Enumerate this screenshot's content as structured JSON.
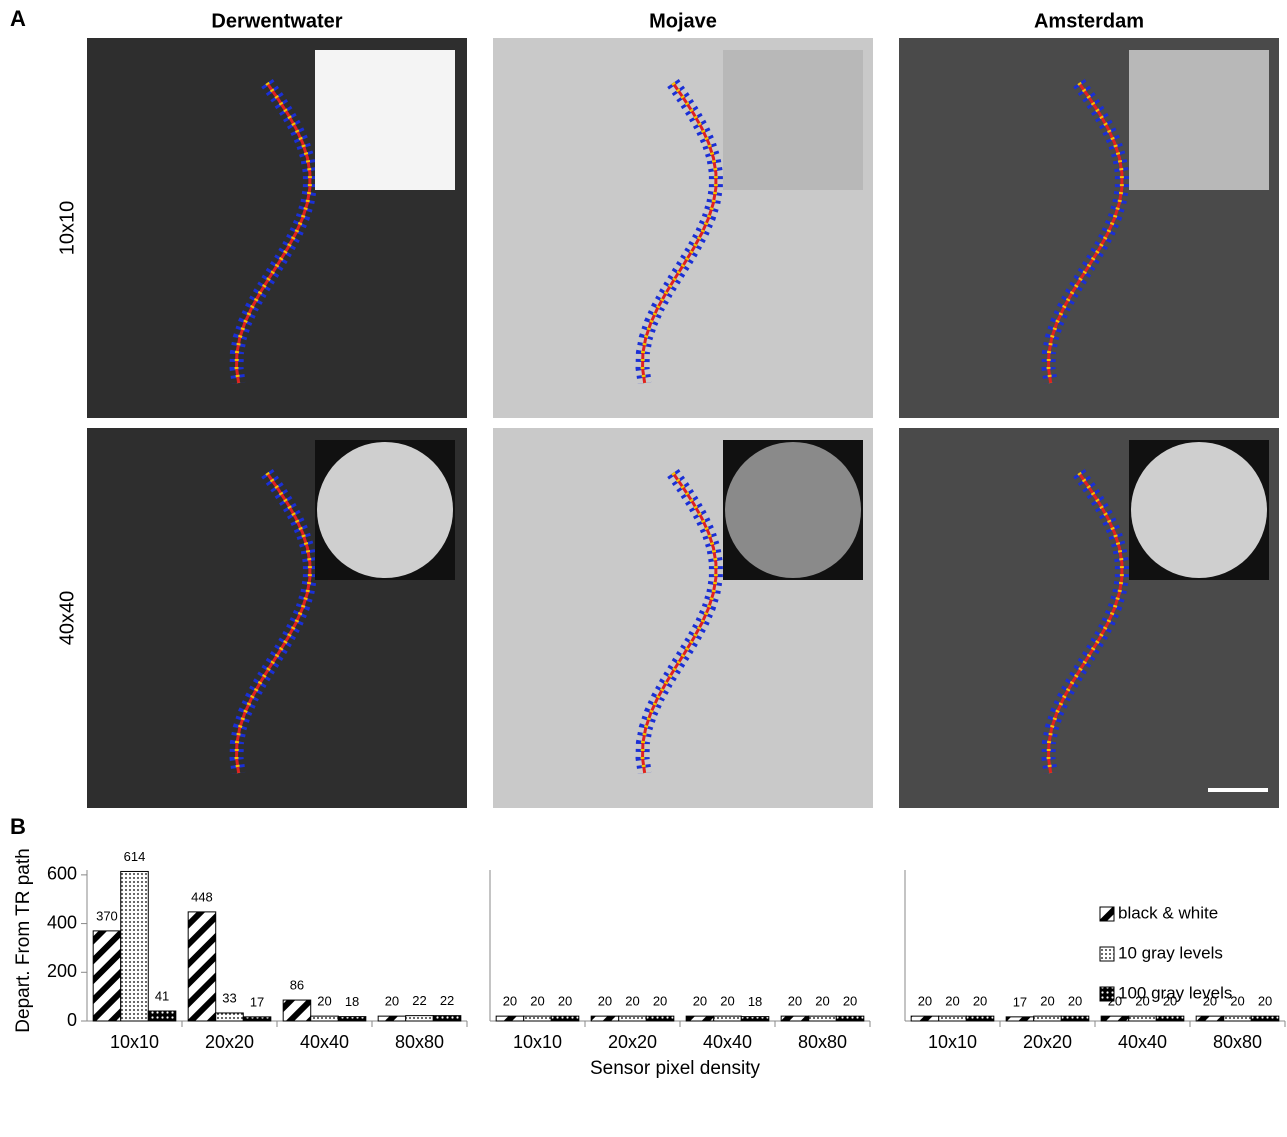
{
  "panel_a": {
    "label": "A",
    "columns": [
      "Derwentwater",
      "Mojave",
      "Amsterdam"
    ],
    "rows": [
      "10x10",
      "40x40"
    ]
  },
  "panel_b": {
    "label": "B"
  },
  "chart_data": [
    {
      "type": "bar",
      "ylabel": "Depart. From TR path",
      "categories": [
        "10x10",
        "20x20",
        "40x40",
        "80x80"
      ],
      "series": [
        {
          "name": "black & white",
          "color": "#000000",
          "values": [
            370,
            448,
            86,
            20
          ]
        },
        {
          "name": "10 gray levels",
          "color": "#000000",
          "values": [
            614,
            33,
            20,
            22
          ]
        },
        {
          "name": "100 gray levels",
          "color": "#000000",
          "values": [
            41,
            17,
            18,
            22
          ]
        }
      ],
      "ylim": [
        0,
        620
      ],
      "yticks": [
        0,
        200,
        400,
        600
      ]
    },
    {
      "type": "bar",
      "xlabel": "Sensor pixel density",
      "categories": [
        "10x10",
        "20x20",
        "40x40",
        "80x80"
      ],
      "series": [
        {
          "name": "black & white",
          "color": "#000000",
          "values": [
            20,
            20,
            20,
            20
          ]
        },
        {
          "name": "10 gray levels",
          "color": "#000000",
          "values": [
            20,
            20,
            20,
            20
          ]
        },
        {
          "name": "100 gray levels",
          "color": "#000000",
          "values": [
            20,
            20,
            18,
            20
          ]
        }
      ],
      "ylim": [
        0,
        620
      ]
    },
    {
      "type": "bar",
      "legend": "right",
      "categories": [
        "10x10",
        "20x20",
        "40x40",
        "80x80"
      ],
      "series": [
        {
          "name": "black & white",
          "color": "#000000",
          "values": [
            20,
            17,
            20,
            20
          ]
        },
        {
          "name": "10 gray levels",
          "color": "#000000",
          "values": [
            20,
            20,
            20,
            20
          ]
        },
        {
          "name": "100 gray levels",
          "color": "#000000",
          "values": [
            20,
            20,
            20,
            20
          ]
        }
      ],
      "ylim": [
        0,
        620
      ]
    }
  ]
}
